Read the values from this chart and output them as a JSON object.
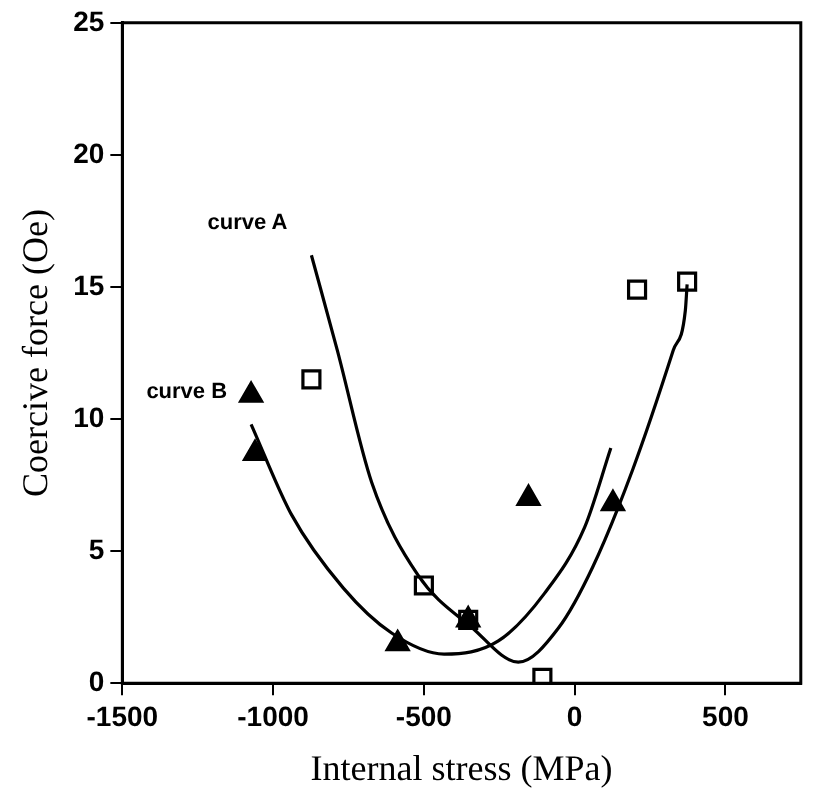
{
  "chart_data": {
    "type": "scatter",
    "xlabel": "Internal stress (MPa)",
    "ylabel": "Coercive force (Oe)",
    "xlim": [
      -1500,
      750
    ],
    "xticks": [
      -1500,
      -1000,
      -500,
      0,
      500
    ],
    "ylim": [
      0,
      25
    ],
    "yticks": [
      0,
      5,
      10,
      15,
      20,
      25
    ],
    "grid": false,
    "legend": false,
    "series": [
      {
        "marker": "square",
        "color": "#000000",
        "x": [
          -873,
          -500,
          -353,
          -107,
          207,
          373
        ],
        "values": [
          11.5,
          3.7,
          2.4,
          0.2,
          14.9,
          15.2
        ]
      },
      {
        "marker": "triangle",
        "color": "#000000",
        "x": [
          -1073,
          -1060,
          -587,
          -353,
          -153,
          127
        ],
        "values": [
          10.9,
          8.7,
          1.5,
          2.4,
          7.0,
          6.8
        ]
      },
      {
        "type": "line",
        "marker": "none",
        "color": "#000000",
        "x": [
          -873,
          -787,
          -673,
          -520,
          -340,
          -187,
          -53,
          60,
          193,
          327,
          367,
          373
        ],
        "values": [
          16.2,
          12.6,
          7.6,
          4.1,
          2.1,
          0.8,
          2.1,
          4.4,
          8.1,
          12.6,
          14.1,
          15.1
        ]
      },
      {
        "type": "line",
        "marker": "none",
        "color": "#000000",
        "x": [
          -1073,
          -940,
          -767,
          -607,
          -433,
          -253,
          -100,
          33,
          120
        ],
        "values": [
          9.8,
          6.4,
          3.6,
          1.9,
          1.1,
          1.6,
          3.4,
          5.9,
          8.9
        ]
      }
    ],
    "annotations": [
      "curve A",
      "curve B"
    ]
  }
}
